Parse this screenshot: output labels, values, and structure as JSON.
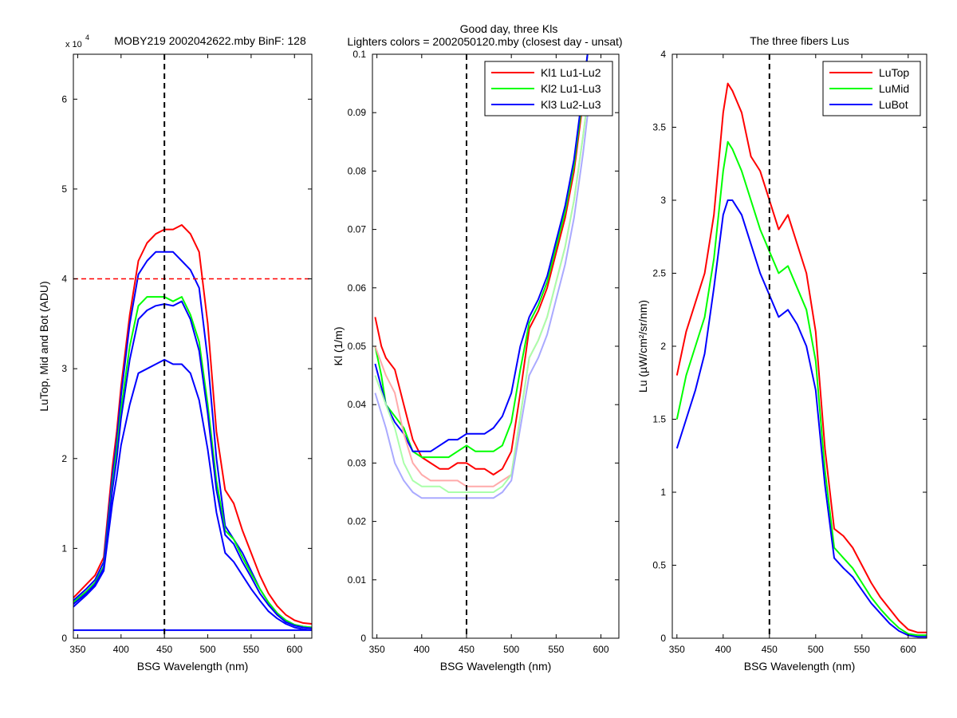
{
  "figure_title": {
    "line1": "Good day, three Kls",
    "line2": "Lighters colors = 2002050120.mby (closest day - unsat)"
  },
  "chart_data": [
    {
      "type": "line",
      "title": "MOBY219  2002042622.mby BinF: 128",
      "y_exponent": "x 10",
      "y_exponent_power": "4",
      "xlabel": "BSG Wavelength (nm)",
      "ylabel": "LuTop, Mid and Bot (ADU)",
      "xlim": [
        345,
        620
      ],
      "ylim": [
        0,
        6.5
      ],
      "xticks": [
        350,
        400,
        450,
        500,
        550,
        600
      ],
      "yticks": [
        0,
        1,
        2,
        3,
        4,
        5,
        6
      ],
      "xtick_labels": [
        "350",
        "400",
        "450",
        "500",
        "550",
        "600"
      ],
      "ytick_labels": [
        "0",
        "1",
        "2",
        "3",
        "4",
        "5",
        "6"
      ],
      "vline_x": 450,
      "hline_y": 4,
      "colors": {
        "red": "#ff0000",
        "green": "#00ff00",
        "blue": "#0000ff",
        "hline": "#ff0000"
      },
      "series": [
        {
          "color": "red",
          "x": [
            345,
            360,
            370,
            380,
            390,
            395,
            400,
            410,
            420,
            430,
            440,
            450,
            460,
            470,
            480,
            490,
            500,
            510,
            520,
            530,
            540,
            550,
            560,
            570,
            580,
            590,
            600,
            610,
            620
          ],
          "y": [
            0.45,
            0.6,
            0.7,
            0.9,
            1.9,
            2.3,
            2.8,
            3.6,
            4.2,
            4.4,
            4.5,
            4.55,
            4.55,
            4.6,
            4.5,
            4.3,
            3.5,
            2.3,
            1.65,
            1.5,
            1.2,
            0.95,
            0.7,
            0.5,
            0.36,
            0.26,
            0.2,
            0.17,
            0.16
          ]
        },
        {
          "color": "blue",
          "x": [
            345,
            360,
            370,
            380,
            390,
            395,
            400,
            410,
            420,
            430,
            440,
            450,
            460,
            470,
            480,
            490,
            500,
            510,
            520,
            530,
            540,
            550,
            560,
            570,
            580,
            590,
            600,
            610,
            620
          ],
          "y": [
            0.42,
            0.55,
            0.65,
            0.85,
            1.8,
            2.2,
            2.7,
            3.5,
            4.05,
            4.2,
            4.3,
            4.3,
            4.3,
            4.2,
            4.1,
            3.9,
            3.1,
            2.0,
            1.25,
            1.1,
            0.95,
            0.75,
            0.55,
            0.4,
            0.28,
            0.2,
            0.15,
            0.13,
            0.12
          ]
        },
        {
          "color": "green",
          "x": [
            345,
            360,
            370,
            380,
            390,
            395,
            400,
            410,
            420,
            430,
            440,
            450,
            460,
            470,
            480,
            490,
            500,
            510,
            520,
            530,
            540,
            550,
            560,
            570,
            580,
            590,
            600,
            610,
            620
          ],
          "y": [
            0.4,
            0.52,
            0.62,
            0.8,
            1.7,
            2.1,
            2.55,
            3.25,
            3.7,
            3.8,
            3.8,
            3.8,
            3.75,
            3.8,
            3.6,
            3.3,
            2.6,
            1.75,
            1.2,
            1.1,
            0.9,
            0.72,
            0.55,
            0.4,
            0.28,
            0.2,
            0.15,
            0.13,
            0.12
          ]
        },
        {
          "color": "blue",
          "x": [
            345,
            360,
            370,
            380,
            390,
            395,
            400,
            410,
            420,
            430,
            440,
            450,
            460,
            470,
            480,
            490,
            500,
            510,
            520,
            530,
            540,
            550,
            560,
            570,
            580,
            590,
            600,
            610,
            620
          ],
          "y": [
            0.38,
            0.5,
            0.6,
            0.78,
            1.65,
            2.0,
            2.45,
            3.1,
            3.55,
            3.65,
            3.7,
            3.72,
            3.7,
            3.75,
            3.55,
            3.2,
            2.5,
            1.65,
            1.15,
            1.05,
            0.85,
            0.68,
            0.5,
            0.37,
            0.26,
            0.18,
            0.14,
            0.12,
            0.11
          ]
        },
        {
          "color": "blue",
          "x": [
            345,
            360,
            370,
            380,
            390,
            395,
            400,
            410,
            420,
            430,
            440,
            450,
            460,
            470,
            480,
            490,
            500,
            510,
            520,
            530,
            540,
            550,
            560,
            570,
            580,
            590,
            600,
            610,
            620
          ],
          "y": [
            0.35,
            0.48,
            0.58,
            0.75,
            1.5,
            1.8,
            2.15,
            2.6,
            2.95,
            3.0,
            3.05,
            3.1,
            3.05,
            3.05,
            2.95,
            2.65,
            2.1,
            1.4,
            0.95,
            0.85,
            0.7,
            0.55,
            0.42,
            0.3,
            0.22,
            0.16,
            0.12,
            0.1,
            0.09
          ]
        },
        {
          "color": "blue",
          "x": [
            345,
            620
          ],
          "y": [
            0.09,
            0.09
          ]
        }
      ]
    },
    {
      "type": "line",
      "title": "",
      "xlabel": "BSG Wavelength (nm)",
      "ylabel": "Kl (1/m)",
      "xlim": [
        345,
        620
      ],
      "ylim": [
        0,
        0.1
      ],
      "xticks": [
        350,
        400,
        450,
        500,
        550,
        600
      ],
      "yticks": [
        0,
        0.01,
        0.02,
        0.03,
        0.04,
        0.05,
        0.06,
        0.07,
        0.08,
        0.09,
        0.1
      ],
      "xtick_labels": [
        "350",
        "400",
        "450",
        "500",
        "550",
        "600"
      ],
      "ytick_labels": [
        "0",
        "0.01",
        "0.02",
        "0.03",
        "0.04",
        "0.05",
        "0.06",
        "0.07",
        "0.08",
        "0.09",
        "0.1"
      ],
      "vline_x": 450,
      "legend_position": "top-right",
      "colors": {
        "red": "#ff0000",
        "green": "#00ff00",
        "blue": "#0000ff",
        "lightred": "#ffaaaa",
        "lightgreen": "#aaffaa",
        "lightblue": "#aaaaff"
      },
      "series": [
        {
          "name": "Kl1 Lu1-Lu2",
          "color": "red",
          "x": [
            348,
            355,
            360,
            370,
            380,
            390,
            400,
            410,
            420,
            430,
            440,
            450,
            460,
            470,
            480,
            490,
            500,
            510,
            520,
            530,
            540,
            550,
            560,
            570,
            580,
            585
          ],
          "y": [
            0.055,
            0.05,
            0.048,
            0.046,
            0.04,
            0.034,
            0.031,
            0.03,
            0.029,
            0.029,
            0.03,
            0.03,
            0.029,
            0.029,
            0.028,
            0.029,
            0.032,
            0.042,
            0.053,
            0.056,
            0.06,
            0.066,
            0.072,
            0.08,
            0.092,
            0.1
          ]
        },
        {
          "name": "Kl2 Lu1-Lu3",
          "color": "green",
          "x": [
            348,
            355,
            360,
            370,
            380,
            390,
            400,
            410,
            420,
            430,
            440,
            450,
            460,
            470,
            480,
            490,
            500,
            510,
            520,
            530,
            540,
            550,
            560,
            570,
            580,
            585
          ],
          "y": [
            0.05,
            0.045,
            0.04,
            0.038,
            0.036,
            0.032,
            0.031,
            0.031,
            0.031,
            0.031,
            0.032,
            0.033,
            0.032,
            0.032,
            0.032,
            0.033,
            0.037,
            0.046,
            0.054,
            0.057,
            0.061,
            0.067,
            0.073,
            0.081,
            0.093,
            0.1
          ]
        },
        {
          "name": "Kl3 Lu2-Lu3",
          "color": "blue",
          "x": [
            348,
            355,
            360,
            370,
            380,
            390,
            400,
            410,
            420,
            430,
            440,
            450,
            460,
            470,
            480,
            490,
            500,
            510,
            520,
            530,
            540,
            550,
            560,
            570,
            580,
            585
          ],
          "y": [
            0.047,
            0.043,
            0.04,
            0.037,
            0.035,
            0.032,
            0.032,
            0.032,
            0.033,
            0.034,
            0.034,
            0.035,
            0.035,
            0.035,
            0.036,
            0.038,
            0.042,
            0.05,
            0.055,
            0.058,
            0.062,
            0.068,
            0.074,
            0.082,
            0.094,
            0.1
          ]
        },
        {
          "color": "lightred",
          "x": [
            348,
            360,
            370,
            380,
            390,
            400,
            410,
            420,
            430,
            440,
            450,
            460,
            470,
            480,
            490,
            500,
            510,
            520,
            530,
            540,
            550,
            560,
            570,
            580,
            590
          ],
          "y": [
            0.05,
            0.045,
            0.042,
            0.035,
            0.03,
            0.028,
            0.027,
            0.027,
            0.027,
            0.027,
            0.026,
            0.026,
            0.026,
            0.026,
            0.027,
            0.028,
            0.038,
            0.048,
            0.051,
            0.055,
            0.061,
            0.067,
            0.075,
            0.086,
            0.098
          ]
        },
        {
          "color": "lightgreen",
          "x": [
            348,
            360,
            370,
            380,
            390,
            400,
            410,
            420,
            430,
            440,
            450,
            460,
            470,
            480,
            490,
            500,
            510,
            520,
            530,
            540,
            550,
            560,
            570,
            580,
            590
          ],
          "y": [
            0.045,
            0.04,
            0.036,
            0.03,
            0.027,
            0.026,
            0.026,
            0.026,
            0.025,
            0.025,
            0.025,
            0.025,
            0.025,
            0.025,
            0.026,
            0.028,
            0.038,
            0.048,
            0.051,
            0.055,
            0.061,
            0.067,
            0.075,
            0.086,
            0.098
          ]
        },
        {
          "color": "lightblue",
          "x": [
            348,
            360,
            370,
            380,
            390,
            400,
            410,
            420,
            430,
            440,
            450,
            460,
            470,
            480,
            490,
            500,
            510,
            520,
            530,
            540,
            550,
            560,
            570,
            580,
            590
          ],
          "y": [
            0.042,
            0.036,
            0.03,
            0.027,
            0.025,
            0.024,
            0.024,
            0.024,
            0.024,
            0.024,
            0.024,
            0.024,
            0.024,
            0.024,
            0.025,
            0.027,
            0.036,
            0.045,
            0.048,
            0.052,
            0.058,
            0.064,
            0.072,
            0.083,
            0.096
          ]
        }
      ]
    },
    {
      "type": "line",
      "title": "The three fibers Lus",
      "xlabel": "BSG Wavelength (nm)",
      "ylabel": "Lu (µW/cm²/sr/nm)",
      "xlim": [
        345,
        620
      ],
      "ylim": [
        0,
        4
      ],
      "xticks": [
        350,
        400,
        450,
        500,
        550,
        600
      ],
      "yticks": [
        0,
        0.5,
        1,
        1.5,
        2,
        2.5,
        3,
        3.5,
        4
      ],
      "xtick_labels": [
        "350",
        "400",
        "450",
        "500",
        "550",
        "600"
      ],
      "ytick_labels": [
        "0",
        "0.5",
        "1",
        "1.5",
        "2",
        "2.5",
        "3",
        "3.5",
        "4"
      ],
      "vline_x": 450,
      "legend_position": "top-right",
      "colors": {
        "red": "#ff0000",
        "green": "#00ff00",
        "blue": "#0000ff"
      },
      "series": [
        {
          "name": "LuTop",
          "color": "red",
          "x": [
            350,
            360,
            370,
            380,
            390,
            400,
            405,
            410,
            420,
            430,
            440,
            450,
            460,
            470,
            480,
            490,
            500,
            510,
            520,
            530,
            540,
            550,
            560,
            570,
            580,
            590,
            600,
            610,
            620
          ],
          "y": [
            1.8,
            2.1,
            2.3,
            2.5,
            2.9,
            3.6,
            3.8,
            3.75,
            3.6,
            3.3,
            3.2,
            3.0,
            2.8,
            2.9,
            2.7,
            2.5,
            2.1,
            1.3,
            0.75,
            0.7,
            0.62,
            0.5,
            0.38,
            0.28,
            0.2,
            0.12,
            0.06,
            0.04,
            0.04
          ]
        },
        {
          "name": "LuMid",
          "color": "green",
          "x": [
            350,
            360,
            370,
            380,
            390,
            400,
            405,
            410,
            420,
            430,
            440,
            450,
            460,
            470,
            480,
            490,
            500,
            510,
            520,
            530,
            540,
            550,
            560,
            570,
            580,
            590,
            600,
            610,
            620
          ],
          "y": [
            1.5,
            1.8,
            2.0,
            2.2,
            2.6,
            3.2,
            3.4,
            3.35,
            3.2,
            3.0,
            2.8,
            2.65,
            2.5,
            2.55,
            2.4,
            2.25,
            1.9,
            1.15,
            0.62,
            0.55,
            0.48,
            0.38,
            0.28,
            0.2,
            0.13,
            0.07,
            0.03,
            0.02,
            0.02
          ]
        },
        {
          "name": "LuBot",
          "color": "blue",
          "x": [
            350,
            360,
            370,
            380,
            390,
            400,
            405,
            410,
            420,
            430,
            440,
            450,
            460,
            470,
            480,
            490,
            500,
            510,
            520,
            530,
            540,
            550,
            560,
            570,
            580,
            590,
            600,
            610,
            620
          ],
          "y": [
            1.3,
            1.5,
            1.7,
            1.95,
            2.4,
            2.9,
            3.0,
            3.0,
            2.9,
            2.7,
            2.5,
            2.35,
            2.2,
            2.25,
            2.15,
            2.0,
            1.7,
            1.05,
            0.55,
            0.48,
            0.42,
            0.33,
            0.24,
            0.17,
            0.1,
            0.05,
            0.02,
            0.01,
            0.01
          ]
        }
      ]
    }
  ]
}
